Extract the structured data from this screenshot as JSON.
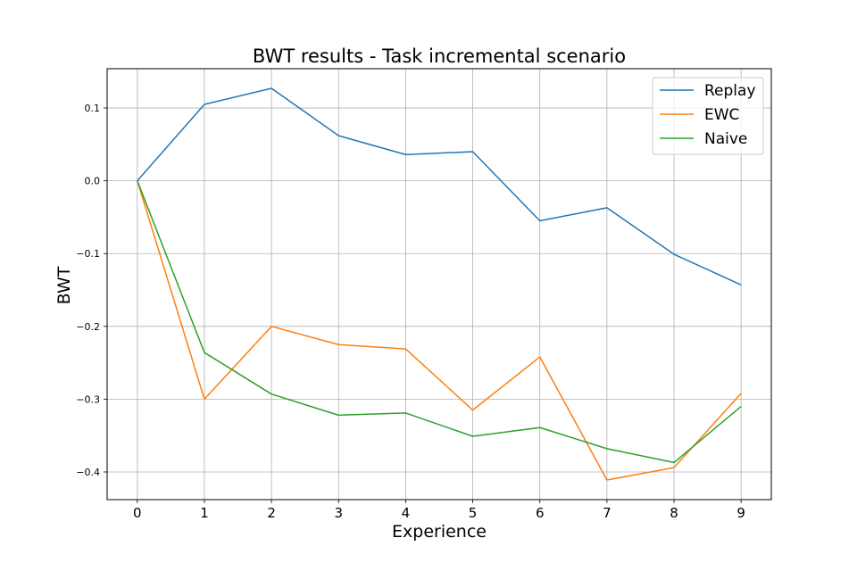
{
  "chart_data": {
    "type": "line",
    "title": "BWT results - Task incremental scenario",
    "xlabel": "Experience",
    "ylabel": "BWT",
    "x": [
      0,
      1,
      2,
      3,
      4,
      5,
      6,
      7,
      8,
      9
    ],
    "xlim": [
      -0.45,
      9.45
    ],
    "ylim": [
      -0.438,
      0.154
    ],
    "xticks": [
      0,
      1,
      2,
      3,
      4,
      5,
      6,
      7,
      8,
      9
    ],
    "yticks": [
      0.1,
      0.0,
      -0.1,
      -0.2,
      -0.3,
      -0.4
    ],
    "ytick_labels": [
      "0.1",
      "0.0",
      "−0.1",
      "−0.2",
      "−0.3",
      "−0.4"
    ],
    "grid": true,
    "legend_position": "top-right",
    "series": [
      {
        "name": "Replay",
        "color": "#1f77b4",
        "values": [
          0.0,
          0.105,
          0.127,
          0.062,
          0.036,
          0.04,
          -0.055,
          -0.037,
          -0.101,
          -0.143
        ]
      },
      {
        "name": "EWC",
        "color": "#ff7f0e",
        "values": [
          0.0,
          -0.3,
          -0.2,
          -0.225,
          -0.231,
          -0.315,
          -0.242,
          -0.411,
          -0.394,
          -0.292
        ]
      },
      {
        "name": "Naive",
        "color": "#2ca02c",
        "values": [
          0.0,
          -0.236,
          -0.293,
          -0.322,
          -0.319,
          -0.351,
          -0.339,
          -0.368,
          -0.387,
          -0.31
        ]
      }
    ]
  }
}
